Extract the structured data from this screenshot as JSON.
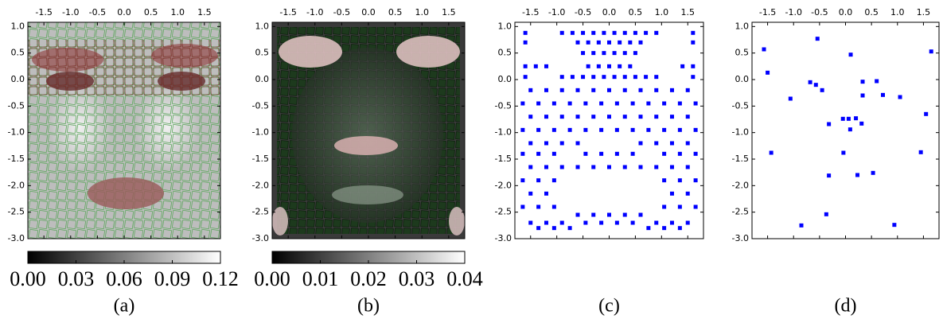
{
  "chart_data": [
    {
      "type": "image",
      "caption": "(a)",
      "xlim": [
        -1.8,
        1.8
      ],
      "ylim": [
        -3.0,
        1.08
      ],
      "xticks": [
        -1.5,
        {
          "value": -1,
          "label": "-1.0"
        },
        -0.5,
        {
          "value": 0,
          "label": "0.0"
        },
        0.5,
        {
          "value": 1,
          "label": "1.0"
        },
        1.5
      ],
      "yticks": [
        {
          "value": 1,
          "label": "1.0"
        },
        0.5,
        {
          "value": 0,
          "label": "0.0"
        },
        -0.5,
        {
          "value": -1,
          "label": "-1.0"
        },
        -1.5,
        {
          "value": -2,
          "label": "-2.0"
        },
        -2.5,
        {
          "value": -3,
          "label": "-3.0"
        }
      ],
      "clim": [
        0,
        0.12
      ],
      "cticks": [
        {
          "value": 0,
          "label": "0.00"
        },
        0.03,
        0.06,
        0.09,
        0.12
      ]
    },
    {
      "type": "image",
      "caption": "(b)",
      "xlim": [
        -1.8,
        1.8
      ],
      "ylim": [
        -3.0,
        1.08
      ],
      "xticks": [
        -1.5,
        {
          "value": -1,
          "label": "-1.0"
        },
        -0.5,
        {
          "value": 0,
          "label": "0.0"
        },
        0.5,
        {
          "value": 1,
          "label": "1.0"
        },
        1.5
      ],
      "yticks": [
        {
          "value": 1,
          "label": "1.0"
        },
        0.5,
        {
          "value": 0,
          "label": "0.0"
        },
        -0.5,
        {
          "value": -1,
          "label": "-1.0"
        },
        -1.5,
        {
          "value": -2,
          "label": "-2.0"
        },
        -2.5,
        {
          "value": -3,
          "label": "-3.0"
        }
      ],
      "clim": [
        0,
        0.04
      ],
      "cticks": [
        {
          "value": 0,
          "label": "0.00"
        },
        0.01,
        0.02,
        0.03,
        0.04
      ]
    },
    {
      "type": "scatter",
      "caption": "(c)",
      "color": "#0000ff",
      "xlim": [
        -1.8,
        1.8
      ],
      "ylim": [
        -3.0,
        1.08
      ],
      "xticks": [
        -1.5,
        {
          "value": -1,
          "label": "-1.0"
        },
        -0.5,
        {
          "value": 0,
          "label": "0.0"
        },
        0.5,
        {
          "value": 1,
          "label": "1.0"
        },
        1.5
      ],
      "yticks": [
        {
          "value": 1,
          "label": "1.0"
        },
        0.5,
        {
          "value": 0,
          "label": "0.0"
        },
        -0.5,
        {
          "value": -1,
          "label": "-1.0"
        },
        -1.5,
        {
          "value": -2,
          "label": "-2.0"
        },
        -2.5,
        {
          "value": -3,
          "label": "-3.0"
        }
      ],
      "x": [
        -1.6,
        -0.9,
        -0.7,
        -0.5,
        -0.3,
        -0.1,
        0.1,
        0.3,
        0.5,
        0.7,
        0.9,
        1.6,
        -1.6,
        -0.6,
        -0.4,
        -0.2,
        0,
        0.2,
        0.4,
        0.6,
        1.6,
        -0.5,
        -0.3,
        -0.1,
        0.1,
        0.3,
        0.5,
        -1.6,
        -1.4,
        -1.2,
        -0.4,
        -0.2,
        0,
        0.2,
        0.4,
        1.4,
        1.6,
        -1.6,
        -0.9,
        -0.7,
        -0.5,
        -0.3,
        -0.1,
        0.1,
        0.3,
        0.5,
        0.7,
        0.9,
        1.6,
        -1.5,
        -1.2,
        -0.9,
        -0.6,
        -0.3,
        0,
        0.3,
        0.6,
        0.9,
        1.2,
        1.5,
        -1.65,
        -1.35,
        -1.05,
        -0.75,
        -0.45,
        -0.15,
        0.15,
        0.45,
        0.75,
        1.05,
        1.35,
        1.65,
        -1.5,
        -1.2,
        -0.9,
        -0.6,
        -0.3,
        0,
        0.3,
        0.6,
        0.9,
        1.2,
        1.5,
        -1.65,
        -1.35,
        -1.05,
        -0.75,
        -0.45,
        -0.15,
        0.15,
        0.45,
        0.75,
        1.05,
        1.35,
        1.65,
        -1.5,
        -1.2,
        -0.9,
        -0.6,
        0.6,
        0.9,
        1.2,
        1.5,
        -1.65,
        -1.35,
        -1.05,
        -0.45,
        -0.15,
        0.15,
        0.45,
        1.05,
        1.35,
        1.65,
        -1.5,
        -1.2,
        -0.9,
        -0.6,
        -0.3,
        0,
        0.3,
        0.6,
        0.9,
        1.2,
        1.5,
        -1.65,
        -1.35,
        -1.05,
        1.05,
        1.35,
        1.65,
        -1.5,
        -1.2,
        1.2,
        1.5,
        -1.65,
        -1.35,
        -1.05,
        1.05,
        1.35,
        1.65,
        -0.6,
        -0.3,
        0,
        0.3,
        0.6,
        -1.5,
        -1.2,
        -0.9,
        -0.45,
        -0.15,
        0.15,
        0.45,
        0.9,
        1.2,
        1.5,
        -1.35,
        -1.05,
        -0.75,
        0.75,
        1.05,
        1.35
      ],
      "values": [
        0.88,
        0.88,
        0.88,
        0.88,
        0.88,
        0.88,
        0.88,
        0.88,
        0.88,
        0.88,
        0.88,
        0.88,
        0.7,
        0.7,
        0.7,
        0.7,
        0.7,
        0.7,
        0.7,
        0.7,
        0.7,
        0.5,
        0.5,
        0.5,
        0.5,
        0.5,
        0.5,
        0.25,
        0.25,
        0.25,
        0.25,
        0.25,
        0.25,
        0.25,
        0.25,
        0.25,
        0.25,
        0.05,
        0.05,
        0.05,
        0.05,
        0.05,
        0.05,
        0.05,
        0.05,
        0.05,
        0.05,
        0.05,
        0.05,
        -0.2,
        -0.2,
        -0.2,
        -0.2,
        -0.2,
        -0.2,
        -0.2,
        -0.2,
        -0.2,
        -0.2,
        -0.2,
        -0.45,
        -0.45,
        -0.45,
        -0.45,
        -0.45,
        -0.45,
        -0.45,
        -0.45,
        -0.45,
        -0.45,
        -0.45,
        -0.45,
        -0.7,
        -0.7,
        -0.7,
        -0.7,
        -0.7,
        -0.7,
        -0.7,
        -0.7,
        -0.7,
        -0.7,
        -0.7,
        -0.95,
        -0.95,
        -0.95,
        -0.95,
        -0.95,
        -0.95,
        -0.95,
        -0.95,
        -0.95,
        -0.95,
        -0.95,
        -0.95,
        -1.2,
        -1.2,
        -1.2,
        -1.2,
        -1.2,
        -1.2,
        -1.2,
        -1.2,
        -1.4,
        -1.4,
        -1.4,
        -1.4,
        -1.4,
        -1.4,
        -1.4,
        -1.4,
        -1.4,
        -1.4,
        -1.65,
        -1.65,
        -1.65,
        -1.65,
        -1.65,
        -1.65,
        -1.65,
        -1.65,
        -1.65,
        -1.65,
        -1.65,
        -1.9,
        -1.9,
        -1.9,
        -1.9,
        -1.9,
        -1.9,
        -2.15,
        -2.15,
        -2.15,
        -2.15,
        -2.4,
        -2.4,
        -2.4,
        -2.4,
        -2.4,
        -2.4,
        -2.55,
        -2.55,
        -2.55,
        -2.55,
        -2.55,
        -2.7,
        -2.7,
        -2.7,
        -2.7,
        -2.7,
        -2.7,
        -2.7,
        -2.7,
        -2.7,
        -2.7,
        -2.8,
        -2.8,
        -2.8,
        -2.8,
        -2.8,
        -2.8
      ]
    },
    {
      "type": "scatter",
      "caption": "(d)",
      "color": "#0000ff",
      "xlim": [
        -1.8,
        1.8
      ],
      "ylim": [
        -3.0,
        1.08
      ],
      "xticks": [
        -1.5,
        {
          "value": -1,
          "label": "-1.0"
        },
        -0.5,
        {
          "value": 0,
          "label": "0.0"
        },
        0.5,
        {
          "value": 1,
          "label": "1.0"
        },
        1.5
      ],
      "yticks": [
        {
          "value": 1,
          "label": "1.0"
        },
        0.5,
        {
          "value": 0,
          "label": "0.0"
        },
        -0.5,
        {
          "value": -1,
          "label": "-1.0"
        },
        -1.5,
        {
          "value": -2,
          "label": "-2.0"
        },
        -2.5,
        {
          "value": -3,
          "label": "-3.0"
        }
      ],
      "x": [
        -1.57,
        -1.5,
        -1.06,
        -0.54,
        -0.68,
        -0.57,
        -0.45,
        0.1,
        0.33,
        0.6,
        0.33,
        0.72,
        1.05,
        1.65,
        1.55,
        -1.43,
        -0.32,
        -0.05,
        0.06,
        0.09,
        0.2,
        0.31,
        -0.04,
        -0.32,
        0.23,
        0.53,
        1.45,
        -0.37,
        -0.85,
        0.94
      ],
      "values": [
        0.57,
        0.13,
        -0.36,
        0.77,
        -0.05,
        -0.1,
        -0.2,
        0.47,
        -0.04,
        -0.03,
        -0.3,
        -0.29,
        -0.33,
        0.53,
        -0.65,
        -1.38,
        -0.84,
        -0.74,
        -0.74,
        -0.94,
        -0.73,
        -0.83,
        -1.38,
        -1.81,
        -1.8,
        -1.76,
        -1.37,
        -2.54,
        -2.75,
        -2.74
      ]
    }
  ]
}
